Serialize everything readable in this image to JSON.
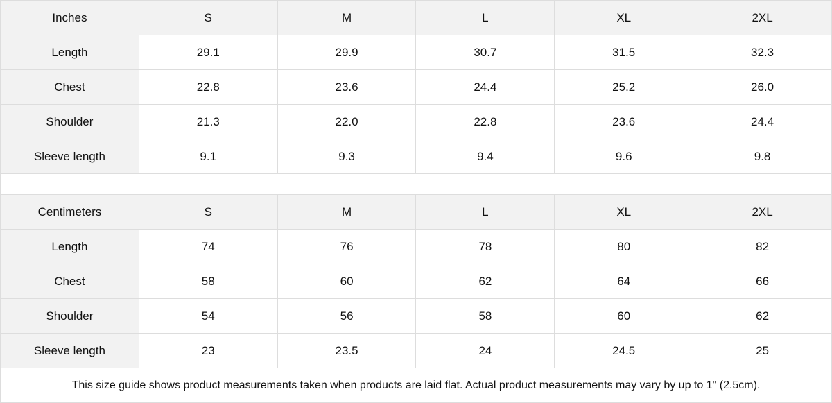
{
  "tables": [
    {
      "unit": "Inches",
      "sizes": [
        "S",
        "M",
        "L",
        "XL",
        "2XL"
      ],
      "rows": [
        {
          "label": "Length",
          "values": [
            "29.1",
            "29.9",
            "30.7",
            "31.5",
            "32.3"
          ]
        },
        {
          "label": "Chest",
          "values": [
            "22.8",
            "23.6",
            "24.4",
            "25.2",
            "26.0"
          ]
        },
        {
          "label": "Shoulder",
          "values": [
            "21.3",
            "22.0",
            "22.8",
            "23.6",
            "24.4"
          ]
        },
        {
          "label": "Sleeve length",
          "values": [
            "9.1",
            "9.3",
            "9.4",
            "9.6",
            "9.8"
          ]
        }
      ]
    },
    {
      "unit": "Centimeters",
      "sizes": [
        "S",
        "M",
        "L",
        "XL",
        "2XL"
      ],
      "rows": [
        {
          "label": "Length",
          "values": [
            "74",
            "76",
            "78",
            "80",
            "82"
          ]
        },
        {
          "label": "Chest",
          "values": [
            "58",
            "60",
            "62",
            "64",
            "66"
          ]
        },
        {
          "label": "Shoulder",
          "values": [
            "54",
            "56",
            "58",
            "60",
            "62"
          ]
        },
        {
          "label": "Sleeve length",
          "values": [
            "23",
            "23.5",
            "24",
            "24.5",
            "25"
          ]
        }
      ]
    }
  ],
  "note": "This size guide shows product measurements taken when products are laid flat.  Actual product measurements may vary by up to 1\" (2.5cm).",
  "colors": {
    "header_bg": "#f2f2f2",
    "border": "#dddddd",
    "text": "#111111"
  }
}
